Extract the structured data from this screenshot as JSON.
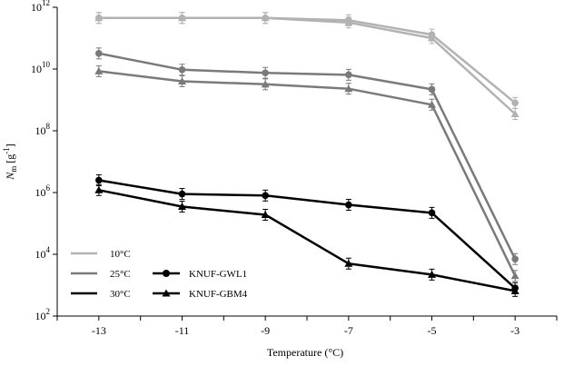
{
  "chart_data": {
    "type": "line",
    "xlabel": "Temperature (°C)",
    "ylabel": {
      "symbol": "N",
      "subscript": "m",
      "unit_open": " [g",
      "unit_sup": "-1",
      "unit_close": "]"
    },
    "y_scale": "log",
    "ylim": [
      100,
      1000000000000
    ],
    "xlim": [
      -14,
      -2
    ],
    "x": [
      -13,
      -11,
      -9,
      -7,
      -5,
      -3
    ],
    "x_tick_labels": [
      "-13",
      "-11",
      "-9",
      "-7",
      "-5",
      "-3"
    ],
    "y_ticks": [
      {
        "base": "10",
        "exp": "2",
        "value": 100
      },
      {
        "base": "10",
        "exp": "4",
        "value": 10000
      },
      {
        "base": "10",
        "exp": "6",
        "value": 1000000
      },
      {
        "base": "10",
        "exp": "8",
        "value": 100000000
      },
      {
        "base": "10",
        "exp": "10",
        "value": 10000000000
      },
      {
        "base": "10",
        "exp": "12",
        "value": 1000000000000
      }
    ],
    "grid": false,
    "legend_position": "bottom-left",
    "temperature_legend": [
      {
        "label": "10°C",
        "color": "#b2b2b2"
      },
      {
        "label": "25°C",
        "color": "#7a7a7a"
      },
      {
        "label": "30°C",
        "color": "#000000"
      }
    ],
    "strain_legend": [
      {
        "label": "KNUF-GWL1",
        "marker": "circle"
      },
      {
        "label": "KNUF-GBM4",
        "marker": "triangle"
      }
    ],
    "series": [
      {
        "strain": "KNUF-GWL1",
        "temperature": "10°C",
        "marker": "circle",
        "color": "#b2b2b2",
        "values": [
          450000000000,
          450000000000,
          450000000000,
          380000000000,
          130000000000,
          800000000
        ]
      },
      {
        "strain": "KNUF-GBM4",
        "temperature": "10°C",
        "marker": "triangle",
        "color": "#b2b2b2",
        "values": [
          450000000000,
          450000000000,
          450000000000,
          320000000000,
          100000000000,
          350000000
        ]
      },
      {
        "strain": "KNUF-GWL1",
        "temperature": "25°C",
        "marker": "circle",
        "color": "#7a7a7a",
        "values": [
          32000000000,
          9500000000,
          7500000000,
          6500000000,
          2200000000,
          7000
        ]
      },
      {
        "strain": "KNUF-GBM4",
        "temperature": "25°C",
        "marker": "triangle",
        "color": "#7a7a7a",
        "values": [
          8500000000,
          4000000000,
          3200000000,
          2300000000,
          700000000,
          2000
        ]
      },
      {
        "strain": "KNUF-GWL1",
        "temperature": "30°C",
        "marker": "circle",
        "color": "#000000",
        "values": [
          2500000,
          900000,
          800000,
          400000,
          220000,
          800
        ]
      },
      {
        "strain": "KNUF-GBM4",
        "temperature": "30°C",
        "marker": "triangle",
        "color": "#000000",
        "values": [
          1200000,
          350000,
          190000,
          5000,
          2200,
          650
        ]
      }
    ]
  }
}
